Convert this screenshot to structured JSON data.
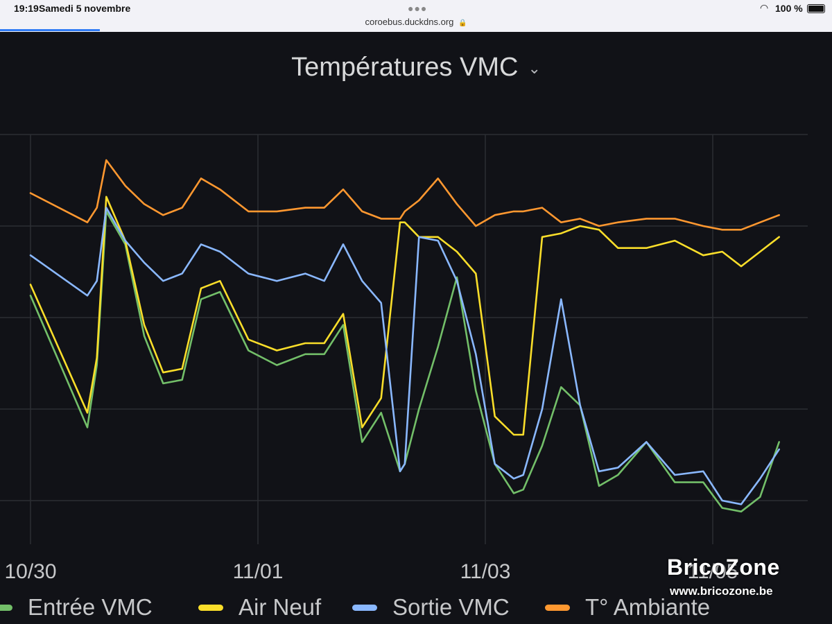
{
  "status_bar": {
    "time": "19:19",
    "date": "Samedi 5 novembre",
    "url": "coroebus.duckdns.org",
    "battery": "100 %"
  },
  "chart_data": {
    "type": "line",
    "title": "Températures VMC",
    "xlabel": "",
    "ylabel": "",
    "x_ticks": [
      "10/30",
      "11/01",
      "11/03",
      "11/05"
    ],
    "y_tick_labels_visible": false,
    "grid": true,
    "legend_position": "bottom",
    "y_range": [
      0,
      100
    ],
    "x": [
      "10/30 00:00",
      "10/30 12:00",
      "10/30 14:00",
      "10/30 16:00",
      "10/30 20:00",
      "10/31 00:00",
      "10/31 04:00",
      "10/31 08:00",
      "10/31 12:00",
      "10/31 16:00",
      "10/31 22:00",
      "11/01 04:00",
      "11/01 10:00",
      "11/01 14:00",
      "11/01 18:00",
      "11/01 22:00",
      "11/02 02:00",
      "11/02 06:00",
      "11/02 07:00",
      "11/02 10:00",
      "11/02 14:00",
      "11/02 18:00",
      "11/02 22:00",
      "11/03 02:00",
      "11/03 06:00",
      "11/03 08:00",
      "11/03 12:00",
      "11/03 16:00",
      "11/03 20:00",
      "11/04 00:00",
      "11/04 04:00",
      "11/04 10:00",
      "11/04 16:00",
      "11/04 22:00",
      "11/05 02:00",
      "11/05 06:00",
      "11/05 10:00",
      "11/05 14:00"
    ],
    "series": [
      {
        "name": "Entrée VMC",
        "color": "#73bf69",
        "values": [
          56,
          20,
          37,
          79,
          70,
          45,
          32,
          33,
          55,
          57,
          41,
          37,
          40,
          40,
          48,
          16,
          24,
          8,
          10,
          25,
          42,
          61,
          30,
          10,
          2,
          3,
          15,
          31,
          26,
          4,
          7,
          16,
          5,
          5,
          -2,
          -3,
          1,
          16
        ]
      },
      {
        "name": "Air Neuf",
        "color": "#fade2a",
        "values": [
          59,
          24,
          39,
          83,
          71,
          48,
          35,
          36,
          58,
          60,
          44,
          41,
          43,
          43,
          51,
          20,
          28,
          76,
          76,
          72,
          72,
          68,
          62,
          23,
          18,
          18,
          72,
          73,
          75,
          74,
          69,
          69,
          71,
          67,
          68,
          64,
          68,
          72
        ]
      },
      {
        "name": "Sortie VMC",
        "color": "#8ab8ff",
        "values": [
          67,
          56,
          60,
          80,
          71,
          65,
          60,
          62,
          70,
          68,
          62,
          60,
          62,
          60,
          70,
          60,
          54,
          8,
          10,
          72,
          71,
          60,
          40,
          10,
          6,
          7,
          25,
          55,
          26,
          8,
          9,
          16,
          7,
          8,
          0,
          -1,
          6,
          14
        ]
      },
      {
        "name": "T° Ambiante",
        "color": "#ff9830",
        "values": [
          84,
          76,
          80,
          93,
          86,
          81,
          78,
          80,
          88,
          85,
          79,
          79,
          80,
          80,
          85,
          79,
          77,
          77,
          79,
          82,
          88,
          81,
          75,
          78,
          79,
          79,
          80,
          76,
          77,
          75,
          76,
          77,
          77,
          75,
          74,
          74,
          76,
          78
        ]
      }
    ]
  },
  "watermark": {
    "brand": "BricoZone",
    "site": "www.bricozone.be"
  }
}
